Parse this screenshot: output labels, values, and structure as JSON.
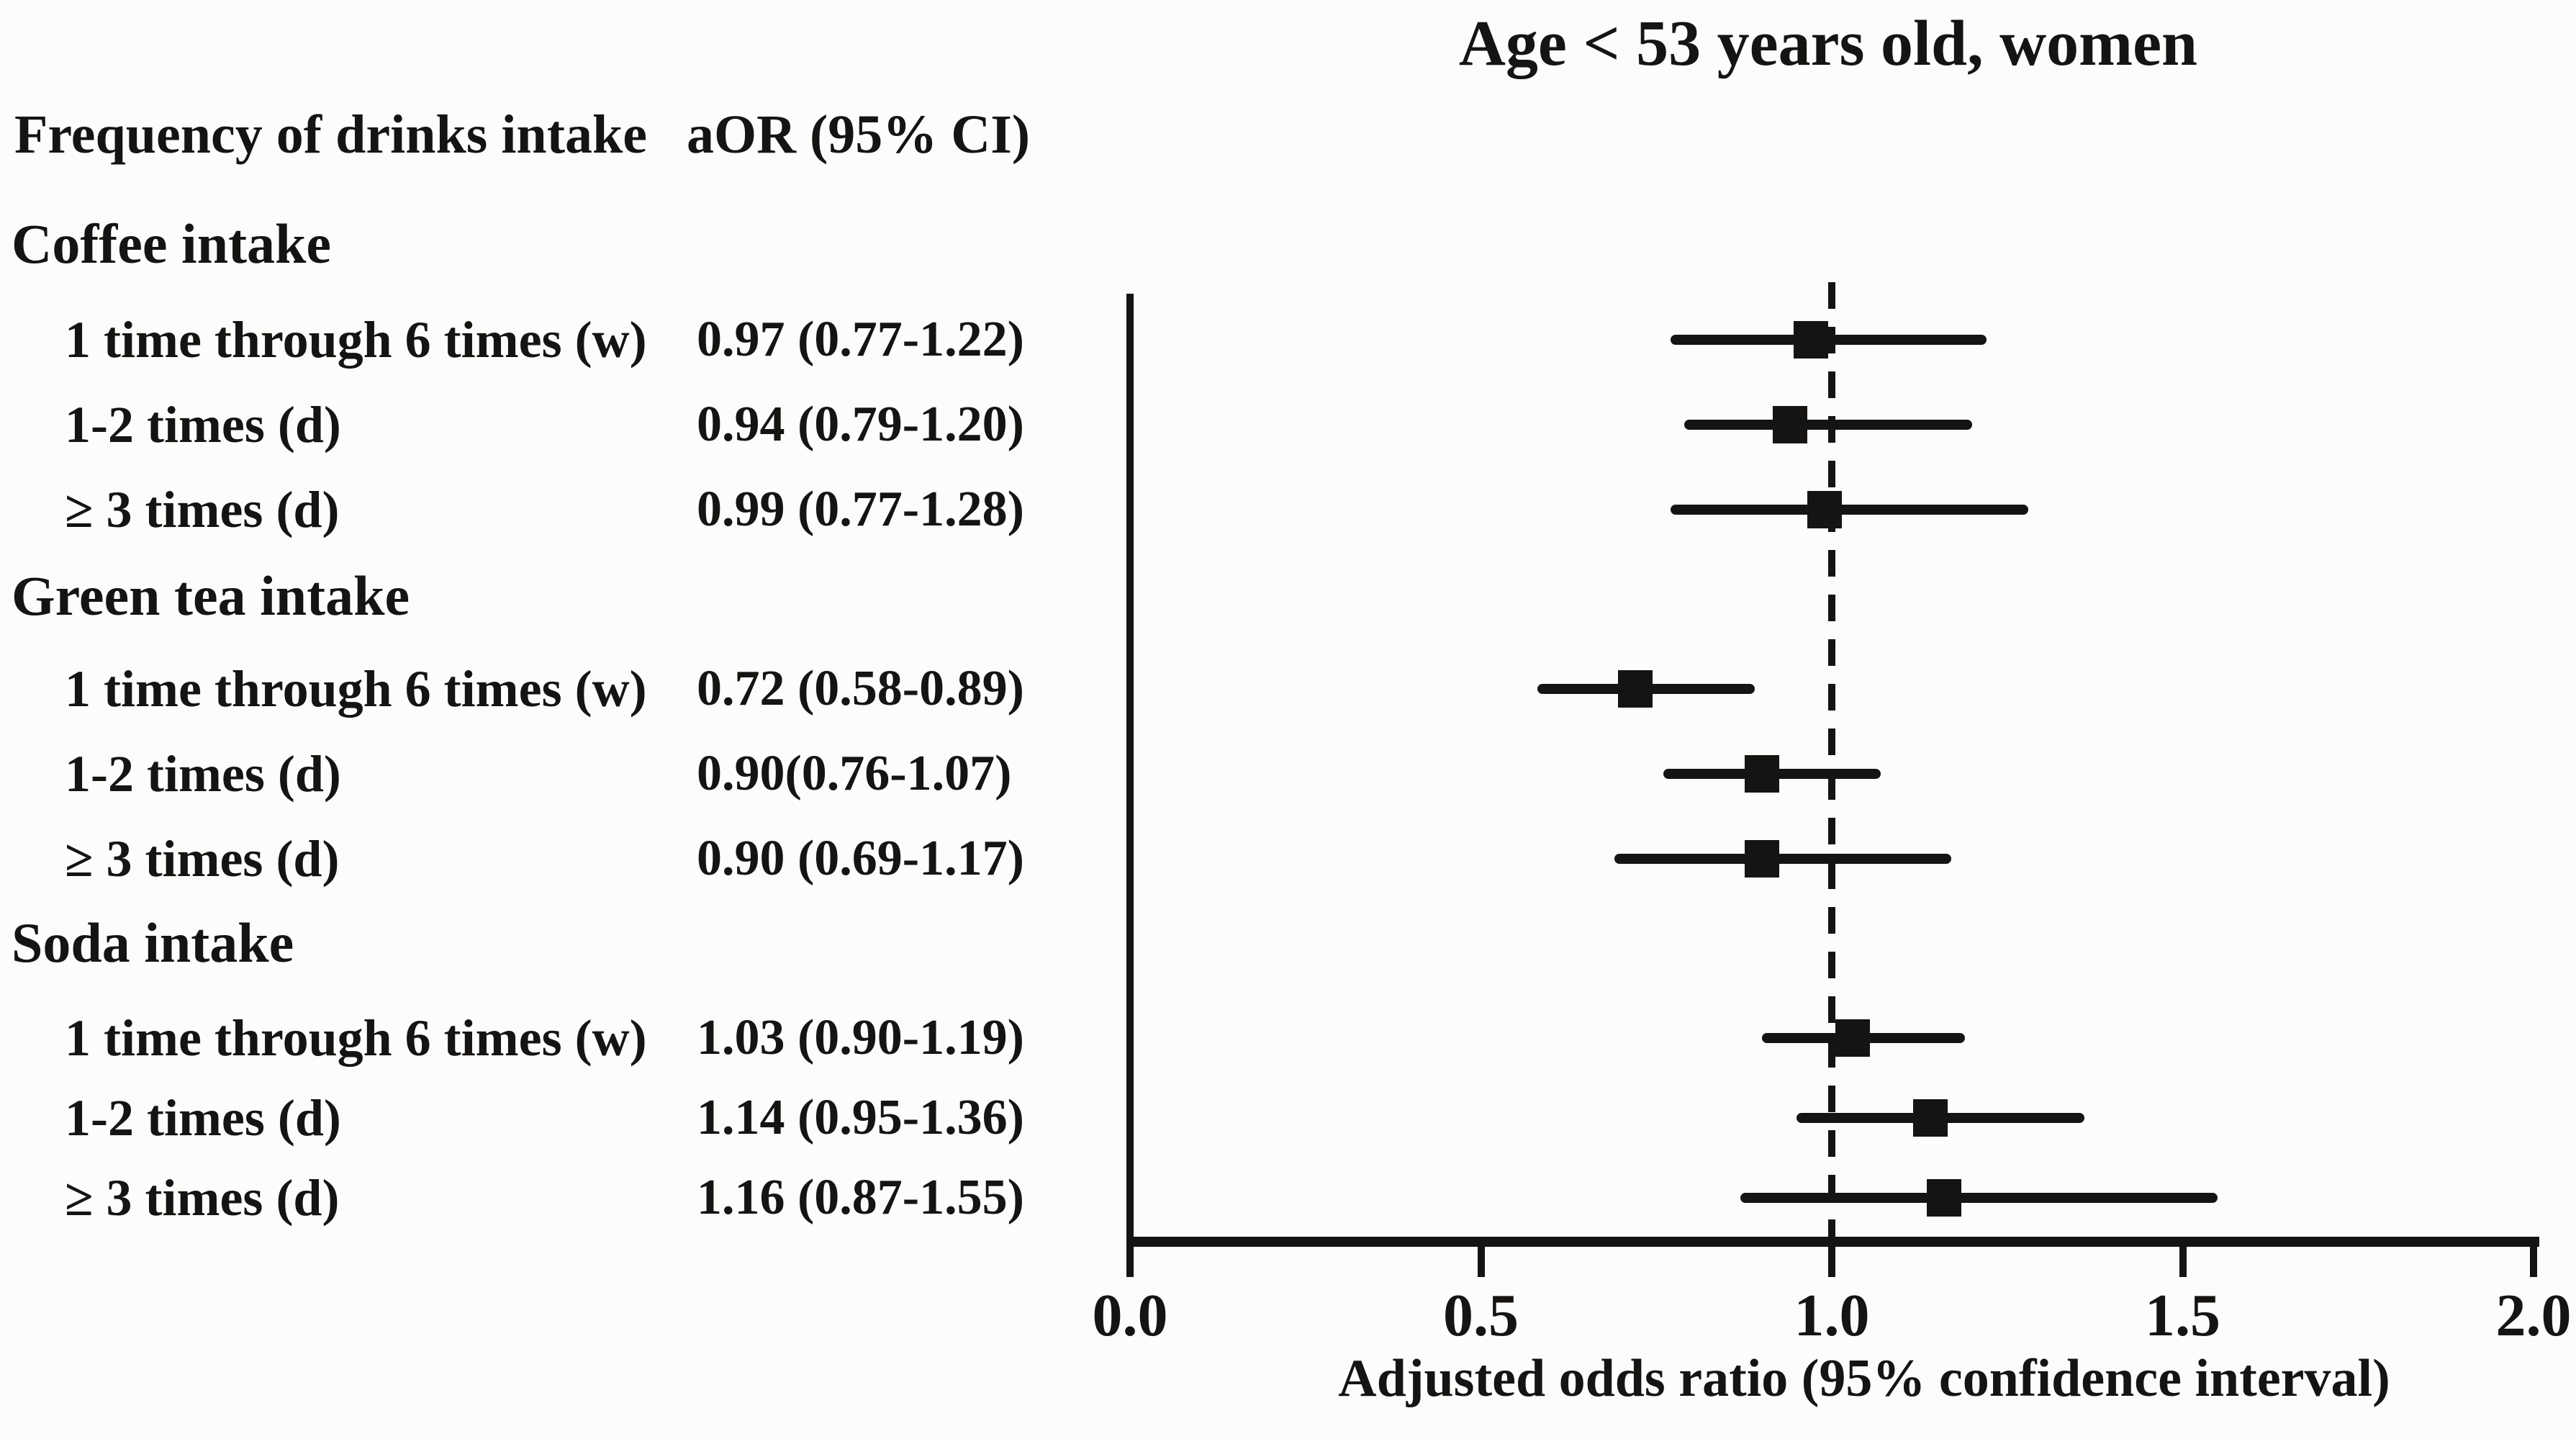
{
  "columns": {
    "frequency": "Frequency of drinks intake",
    "aor": "aOR (95% CI)"
  },
  "colors": {
    "ink": "#161412",
    "background": "#fcfcfa"
  },
  "chart_data": {
    "type": "scatter",
    "subtype": "forest-plot",
    "title": "Age < 53 years old, women",
    "xlabel": "Adjusted odds ratio (95% confidence interval)",
    "xlim": [
      0.0,
      2.0
    ],
    "xticks": [
      {
        "value": 0.0,
        "label": "0.0"
      },
      {
        "value": 0.5,
        "label": "0.5"
      },
      {
        "value": 1.0,
        "label": "1.0"
      },
      {
        "value": 1.5,
        "label": "1.5"
      },
      {
        "value": 2.0,
        "label": "2.0"
      }
    ],
    "reference_line_x": 1.0,
    "legend": "none",
    "grid": false,
    "groups": [
      {
        "label": "Coffee intake",
        "rows": [
          {
            "label": "1 time through 6 times (w)",
            "aor_text": "0.97 (0.77-1.22)",
            "or": 0.97,
            "ci_low": 0.77,
            "ci_high": 1.22
          },
          {
            "label": "1-2 times (d)",
            "aor_text": "0.94 (0.79-1.20)",
            "or": 0.94,
            "ci_low": 0.79,
            "ci_high": 1.2
          },
          {
            "label": "≥ 3 times (d)",
            "aor_text": "0.99 (0.77-1.28)",
            "or": 0.99,
            "ci_low": 0.77,
            "ci_high": 1.28
          }
        ]
      },
      {
        "label": "Green tea intake",
        "rows": [
          {
            "label": "1 time through 6 times (w)",
            "aor_text": "0.72 (0.58-0.89)",
            "or": 0.72,
            "ci_low": 0.58,
            "ci_high": 0.89
          },
          {
            "label": "1-2 times (d)",
            "aor_text": "0.90(0.76-1.07)",
            "or": 0.9,
            "ci_low": 0.76,
            "ci_high": 1.07
          },
          {
            "label": "≥ 3 times (d)",
            "aor_text": "0.90 (0.69-1.17)",
            "or": 0.9,
            "ci_low": 0.69,
            "ci_high": 1.17
          }
        ]
      },
      {
        "label": "Soda intake",
        "rows": [
          {
            "label": "1 time through 6 times (w)",
            "aor_text": "1.03 (0.90-1.19)",
            "or": 1.03,
            "ci_low": 0.9,
            "ci_high": 1.19
          },
          {
            "label": "1-2 times (d)",
            "aor_text": "1.14 (0.95-1.36)",
            "or": 1.14,
            "ci_low": 0.95,
            "ci_high": 1.36
          },
          {
            "label": "≥ 3 times (d)",
            "aor_text": "1.16 (0.87-1.55)",
            "or": 1.16,
            "ci_low": 0.87,
            "ci_high": 1.55
          }
        ]
      }
    ]
  }
}
